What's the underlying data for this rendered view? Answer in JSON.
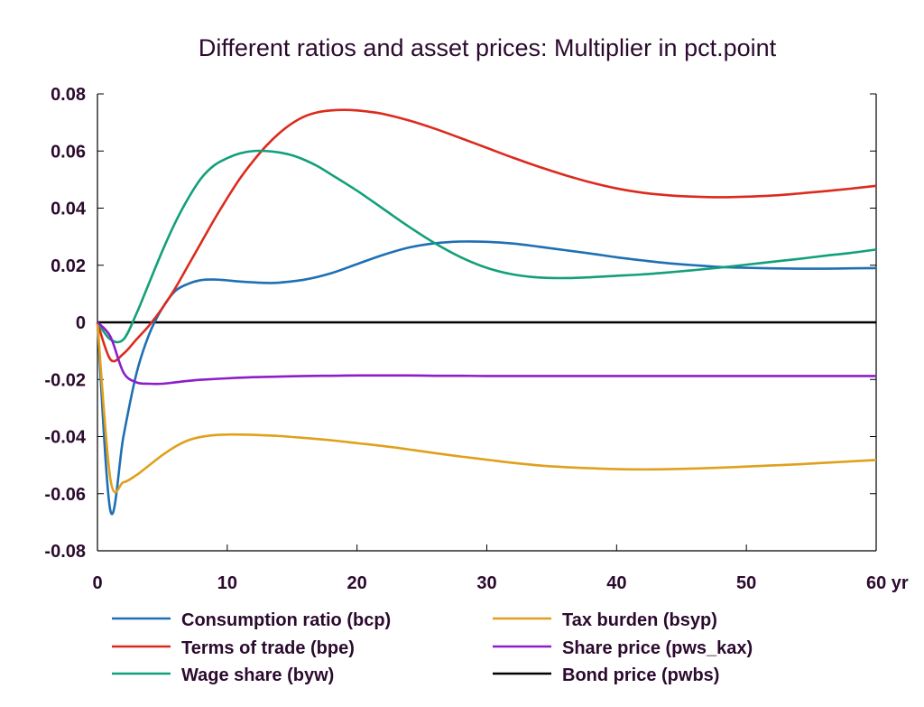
{
  "chart_data": {
    "type": "line",
    "title": "Different ratios and asset prices: Multiplier in pct.point",
    "xlabel": "",
    "ylabel": "",
    "xlim": [
      0,
      60
    ],
    "ylim": [
      -0.08,
      0.08
    ],
    "x_ticks": [
      0,
      10,
      20,
      30,
      40,
      50,
      60
    ],
    "x_tick_labels": [
      "0",
      "10",
      "20",
      "30",
      "40",
      "50",
      "60 yr"
    ],
    "y_ticks": [
      -0.08,
      -0.06,
      -0.04,
      -0.02,
      0,
      0.02,
      0.04,
      0.06,
      0.08
    ],
    "y_tick_labels": [
      "-0.08",
      "-0.06",
      "-0.04",
      "-0.02",
      "0",
      "0.02",
      "0.04",
      "0.06",
      "0.08"
    ],
    "grid": false,
    "legend_position": "bottom",
    "series": [
      {
        "name": "Consumption ratio (bcp)",
        "color": "#1f6fb4",
        "x": [
          0,
          1,
          2,
          3,
          4,
          5,
          6,
          7,
          8,
          9,
          10,
          11,
          12,
          13,
          14,
          16,
          18,
          20,
          22,
          24,
          26,
          28,
          30,
          32,
          34,
          36,
          38,
          40,
          42,
          44,
          46,
          48,
          50,
          52,
          54,
          56,
          58,
          60
        ],
        "y": [
          0,
          -0.066,
          -0.04,
          -0.018,
          -0.004,
          0.005,
          0.011,
          0.0135,
          0.0148,
          0.015,
          0.0147,
          0.0143,
          0.014,
          0.0138,
          0.0139,
          0.015,
          0.0172,
          0.0204,
          0.0236,
          0.0262,
          0.0277,
          0.0283,
          0.0282,
          0.0276,
          0.0265,
          0.0253,
          0.0241,
          0.0228,
          0.0217,
          0.0207,
          0.02,
          0.0194,
          0.0191,
          0.0189,
          0.0188,
          0.0188,
          0.0189,
          0.019
        ]
      },
      {
        "name": "Terms of trade (bpe)",
        "color": "#dc2a1e",
        "x": [
          0,
          1,
          2,
          3,
          4,
          5,
          6,
          7,
          8,
          9,
          10,
          11,
          12,
          13,
          14,
          15,
          16,
          17,
          18,
          19,
          20,
          21,
          22,
          24,
          26,
          28,
          30,
          32,
          34,
          36,
          38,
          40,
          42,
          44,
          46,
          48,
          50,
          52,
          54,
          56,
          58,
          60
        ],
        "y": [
          0,
          -0.013,
          -0.011,
          -0.006,
          -0.001,
          0.005,
          0.012,
          0.02,
          0.028,
          0.036,
          0.0435,
          0.0505,
          0.0565,
          0.0618,
          0.0662,
          0.0697,
          0.0722,
          0.0736,
          0.0742,
          0.0744,
          0.0742,
          0.0737,
          0.073,
          0.0707,
          0.0678,
          0.0645,
          0.0611,
          0.0577,
          0.0545,
          0.0516,
          0.049,
          0.0469,
          0.0454,
          0.0445,
          0.044,
          0.0438,
          0.044,
          0.0444,
          0.0451,
          0.0459,
          0.0468,
          0.0478
        ]
      },
      {
        "name": "Wage share (byw)",
        "color": "#12a07a",
        "x": [
          0,
          1,
          2,
          3,
          4,
          5,
          6,
          7,
          8,
          9,
          10,
          11,
          12,
          13,
          14,
          15,
          16,
          17,
          18,
          20,
          22,
          24,
          26,
          28,
          30,
          32,
          34,
          36,
          38,
          40,
          42,
          44,
          46,
          48,
          50,
          52,
          54,
          56,
          58,
          60
        ],
        "y": [
          0,
          -0.006,
          -0.006,
          0.003,
          0.014,
          0.025,
          0.035,
          0.0435,
          0.0505,
          0.055,
          0.0575,
          0.0592,
          0.06,
          0.06,
          0.0595,
          0.0585,
          0.0568,
          0.0546,
          0.0518,
          0.0461,
          0.0398,
          0.0335,
          0.0277,
          0.0228,
          0.0191,
          0.0168,
          0.0157,
          0.0155,
          0.0158,
          0.0163,
          0.0168,
          0.0175,
          0.0183,
          0.0192,
          0.0202,
          0.0212,
          0.0222,
          0.0233,
          0.0243,
          0.0255
        ]
      },
      {
        "name": "Tax burden (bsyp)",
        "color": "#e0a01c",
        "x": [
          0,
          1,
          2,
          3,
          4,
          5,
          6,
          7,
          8,
          9,
          10,
          11,
          12,
          14,
          16,
          18,
          20,
          22,
          24,
          26,
          28,
          30,
          32,
          34,
          36,
          38,
          40,
          42,
          44,
          46,
          48,
          50,
          52,
          54,
          56,
          58,
          60
        ],
        "y": [
          0,
          -0.055,
          -0.056,
          -0.0535,
          -0.05,
          -0.0465,
          -0.0435,
          -0.0413,
          -0.0401,
          -0.0395,
          -0.0393,
          -0.0393,
          -0.0394,
          -0.0398,
          -0.0405,
          -0.0413,
          -0.0423,
          -0.0433,
          -0.0445,
          -0.0458,
          -0.047,
          -0.0481,
          -0.0492,
          -0.0501,
          -0.0507,
          -0.0511,
          -0.0514,
          -0.0515,
          -0.0514,
          -0.0512,
          -0.0509,
          -0.0505,
          -0.0501,
          -0.0497,
          -0.0492,
          -0.0487,
          -0.0482
        ]
      },
      {
        "name": "Share price (pws_kax)",
        "color": "#8b1ec9",
        "x": [
          0,
          1,
          2,
          3,
          4,
          5,
          6,
          7,
          8,
          10,
          12,
          14,
          16,
          18,
          20,
          22,
          24,
          26,
          28,
          30,
          35,
          40,
          45,
          50,
          55,
          60
        ],
        "y": [
          0,
          -0.005,
          -0.0175,
          -0.021,
          -0.0215,
          -0.0215,
          -0.021,
          -0.0205,
          -0.0201,
          -0.0196,
          -0.0192,
          -0.019,
          -0.0188,
          -0.0187,
          -0.0186,
          -0.0186,
          -0.0186,
          -0.0187,
          -0.0187,
          -0.0188,
          -0.0188,
          -0.0188,
          -0.0188,
          -0.0188,
          -0.0188,
          -0.0188
        ]
      },
      {
        "name": "Bond price (pwbs)",
        "color": "#000000",
        "x": [
          0,
          60
        ],
        "y": [
          0,
          0
        ]
      }
    ]
  }
}
